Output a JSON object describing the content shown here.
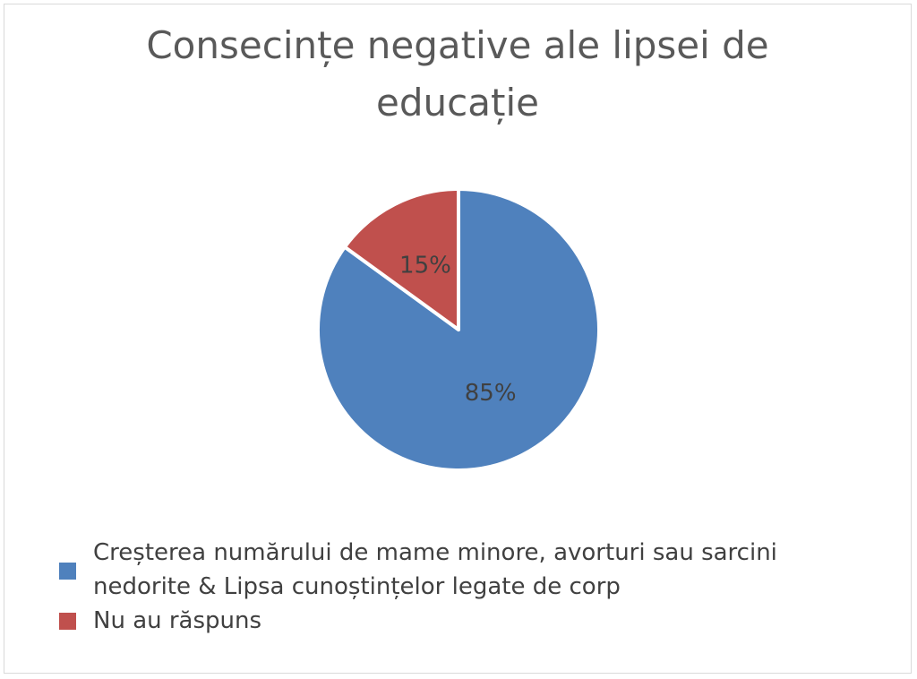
{
  "chart_data": {
    "type": "pie",
    "title_lines": [
      "Consecințe negative ale lipsei de",
      "educație"
    ],
    "slices": [
      {
        "label_lines": [
          "Creșterea numărului de mame minore, avorturi sau sarcini",
          "nedorite & Lipsa cunoștințelor legate de corp"
        ],
        "value": 85,
        "data_label": "85%",
        "color": "#4f81bd"
      },
      {
        "label_lines": [
          "Nu au răspuns"
        ],
        "value": 15,
        "data_label": "15%",
        "color": "#c0504d"
      }
    ],
    "legend_position": "bottom",
    "data_label_color": "#404040"
  }
}
